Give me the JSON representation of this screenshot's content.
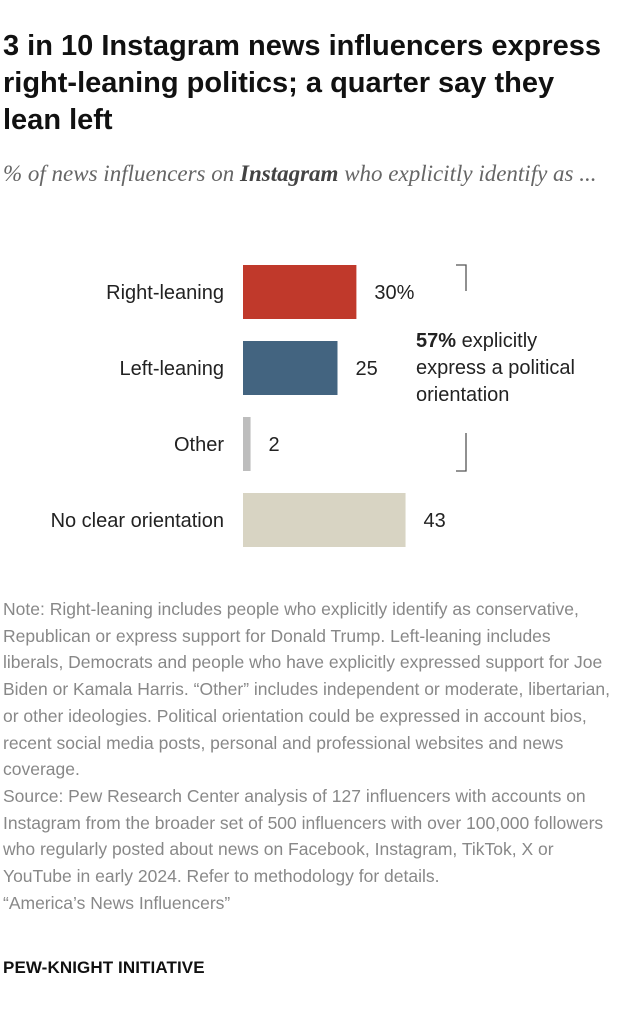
{
  "title": "3 in 10 Instagram news influencers express right-leaning politics; a quarter say they lean left",
  "subtitle": {
    "before": "% of news influencers on ",
    "platform": "Instagram",
    "after": " who explicitly identify as ..."
  },
  "chart_data": {
    "type": "bar",
    "orientation": "horizontal",
    "categories": [
      "Right-leaning",
      "Left-leaning",
      "Other",
      "No clear orientation"
    ],
    "values": [
      30,
      25,
      2,
      43
    ],
    "value_labels": [
      "30%",
      "25",
      "2",
      "43"
    ],
    "colors": [
      "#c0392b",
      "#436480",
      "#bdbdbd",
      "#d8d4c3"
    ],
    "xlim": [
      0,
      100
    ],
    "grid": false,
    "annotation": {
      "value": "57%",
      "lines": [
        " explicitly",
        "express a political",
        "orientation"
      ],
      "brackets": [
        "Right-leaning",
        "Other"
      ]
    }
  },
  "note": "Note: Right-leaning includes people who explicitly identify as conservative, Republican or express support for Donald Trump. Left-leaning includes liberals, Democrats and people who have explicitly expressed support for Joe Biden or Kamala Harris. “Other” includes independent or moderate, libertarian, or other ideologies. Political orientation could be expressed in account bios, recent social media posts, personal and professional websites and news coverage.",
  "source": "Source: Pew Research Center analysis of 127 influencers with accounts on Instagram from the broader set of 500 influencers with over 100,000 followers who regularly posted about news on Facebook, Instagram, TikTok, X or YouTube in early 2024. Refer to methodology for details.",
  "report": "“America’s News Influencers”",
  "brand": "PEW-KNIGHT INITIATIVE"
}
